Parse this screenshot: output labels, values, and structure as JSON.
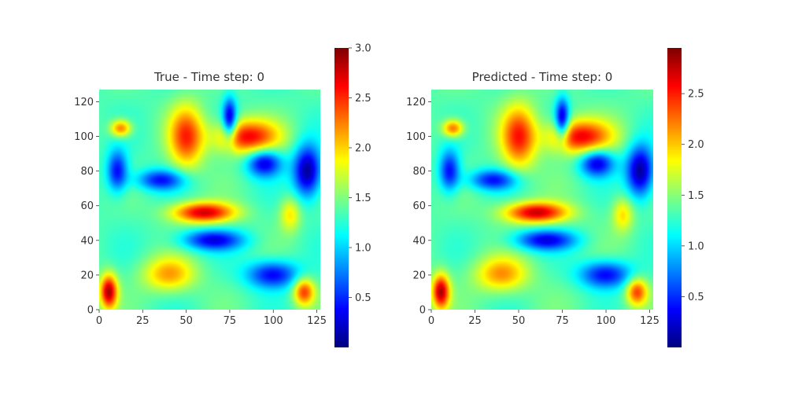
{
  "chart_data": [
    {
      "type": "heatmap",
      "title": "True - Time step: 0",
      "xlabel": "",
      "ylabel": "",
      "xlim": [
        0,
        127
      ],
      "ylim": [
        0,
        127
      ],
      "x_ticks": [
        "0",
        "25",
        "50",
        "75",
        "100",
        "125"
      ],
      "y_ticks": [
        "0",
        "20",
        "40",
        "60",
        "80",
        "100",
        "120"
      ],
      "colormap": "jet",
      "colorbar": {
        "range": [
          0.0,
          3.0
        ],
        "ticks": [
          "0.5",
          "1.0",
          "1.5",
          "2.0",
          "2.5",
          "3.0"
        ]
      },
      "field": {
        "description_units": "data values on 128x128 grid, high/low features",
        "blobs": [
          {
            "x": 85,
            "y": 100,
            "sx": 18,
            "sy": 10,
            "v": 1.3
          },
          {
            "x": 50,
            "y": 100,
            "sx": 10,
            "sy": 18,
            "v": 1.1
          },
          {
            "x": 60,
            "y": 56,
            "sx": 18,
            "sy": 6,
            "v": 1.4
          },
          {
            "x": 5,
            "y": 10,
            "sx": 5,
            "sy": 10,
            "v": 1.5
          },
          {
            "x": 118,
            "y": 10,
            "sx": 6,
            "sy": 8,
            "v": 1.1
          },
          {
            "x": 40,
            "y": 20,
            "sx": 15,
            "sy": 10,
            "v": 0.8
          },
          {
            "x": 12,
            "y": 105,
            "sx": 6,
            "sy": 5,
            "v": 1.0
          },
          {
            "x": 110,
            "y": 55,
            "sx": 6,
            "sy": 10,
            "v": 0.6
          },
          {
            "x": 95,
            "y": 85,
            "sx": 10,
            "sy": 8,
            "v": -1.1
          },
          {
            "x": 120,
            "y": 80,
            "sx": 8,
            "sy": 15,
            "v": -1.3
          },
          {
            "x": 35,
            "y": 75,
            "sx": 14,
            "sy": 6,
            "v": -0.9
          },
          {
            "x": 10,
            "y": 80,
            "sx": 6,
            "sy": 12,
            "v": -1.0
          },
          {
            "x": 65,
            "y": 40,
            "sx": 18,
            "sy": 6,
            "v": -1.0
          },
          {
            "x": 100,
            "y": 20,
            "sx": 15,
            "sy": 8,
            "v": -1.0
          },
          {
            "x": 75,
            "y": 110,
            "sx": 4,
            "sy": 12,
            "v": -1.2
          }
        ],
        "base": 1.35
      }
    },
    {
      "type": "heatmap",
      "title": "Predicted - Time step: 0",
      "xlabel": "",
      "ylabel": "",
      "xlim": [
        0,
        127
      ],
      "ylim": [
        0,
        127
      ],
      "x_ticks": [
        "0",
        "25",
        "50",
        "75",
        "100",
        "125"
      ],
      "y_ticks": [
        "0",
        "20",
        "40",
        "60",
        "80",
        "100",
        "120"
      ],
      "colormap": "jet",
      "colorbar": {
        "range": [
          0.0,
          2.95
        ],
        "ticks": [
          "0.5",
          "1.0",
          "1.5",
          "2.0",
          "2.5"
        ]
      },
      "field": {
        "description_units": "data values on 128x128 grid, high/low features",
        "blobs": [
          {
            "x": 85,
            "y": 100,
            "sx": 18,
            "sy": 10,
            "v": 1.28
          },
          {
            "x": 50,
            "y": 100,
            "sx": 10,
            "sy": 18,
            "v": 1.1
          },
          {
            "x": 60,
            "y": 56,
            "sx": 18,
            "sy": 6,
            "v": 1.38
          },
          {
            "x": 5,
            "y": 10,
            "sx": 5,
            "sy": 10,
            "v": 1.45
          },
          {
            "x": 118,
            "y": 10,
            "sx": 6,
            "sy": 8,
            "v": 1.05
          },
          {
            "x": 40,
            "y": 20,
            "sx": 15,
            "sy": 10,
            "v": 0.8
          },
          {
            "x": 12,
            "y": 105,
            "sx": 6,
            "sy": 5,
            "v": 1.0
          },
          {
            "x": 110,
            "y": 55,
            "sx": 6,
            "sy": 10,
            "v": 0.6
          },
          {
            "x": 95,
            "y": 85,
            "sx": 10,
            "sy": 8,
            "v": -1.1
          },
          {
            "x": 120,
            "y": 80,
            "sx": 8,
            "sy": 15,
            "v": -1.3
          },
          {
            "x": 35,
            "y": 75,
            "sx": 14,
            "sy": 6,
            "v": -0.9
          },
          {
            "x": 10,
            "y": 80,
            "sx": 6,
            "sy": 12,
            "v": -1.0
          },
          {
            "x": 65,
            "y": 40,
            "sx": 18,
            "sy": 6,
            "v": -1.0
          },
          {
            "x": 100,
            "y": 20,
            "sx": 15,
            "sy": 8,
            "v": -1.0
          },
          {
            "x": 75,
            "y": 110,
            "sx": 4,
            "sy": 12,
            "v": -1.2
          }
        ],
        "base": 1.35
      }
    }
  ]
}
